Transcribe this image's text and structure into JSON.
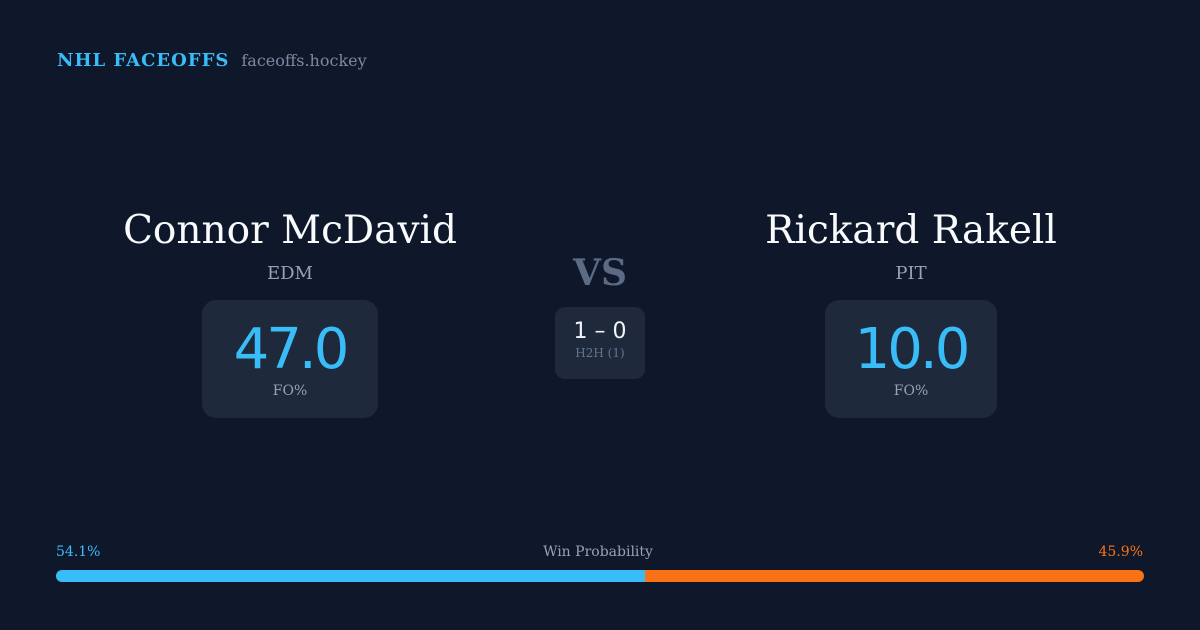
{
  "brand": {
    "title": "NHL FACEOFFS",
    "url": "faceoffs.hockey"
  },
  "player1": {
    "name": "Connor McDavid",
    "team": "EDM",
    "fo_pct": "47.0",
    "fo_label": "FO%"
  },
  "player2": {
    "name": "Rickard Rakell",
    "team": "PIT",
    "fo_pct": "10.0",
    "fo_label": "FO%"
  },
  "vs": "VS",
  "h2h": {
    "score": "1 – 0",
    "label": "H2H (1)"
  },
  "win_probability": {
    "label": "Win Probability",
    "left": "54.1%",
    "right": "45.9%",
    "left_value": 54.1,
    "right_value": 45.9,
    "left_color": "#38bdf8",
    "right_color": "#f97316"
  }
}
